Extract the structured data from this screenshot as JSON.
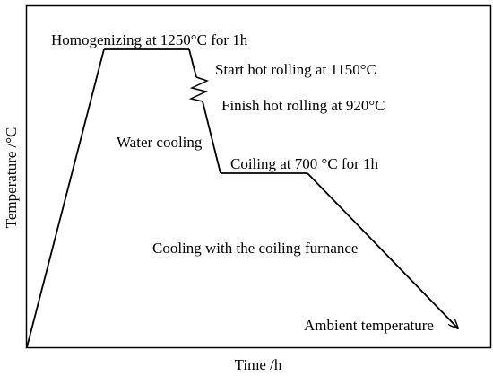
{
  "axes": {
    "x_label": "Time /h",
    "y_label": "Temperature /°C"
  },
  "annotations": {
    "homogenizing": "Homogenizing at 1250°C for 1h",
    "start_hot_rolling": "Start hot rolling at 1150°C",
    "finish_hot_rolling": "Finish hot rolling at 920°C",
    "water_cooling": "Water cooling",
    "coiling": "Coiling at 700 °C for 1h",
    "furnace_cooling": "Cooling with the coiling furnance",
    "ambient": "Ambient temperature"
  }
}
